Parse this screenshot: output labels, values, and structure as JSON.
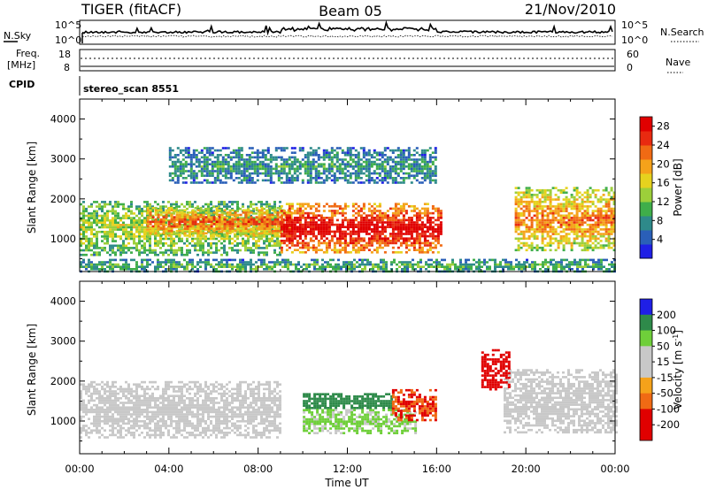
{
  "header": {
    "radar": "TIGER (fitACF)",
    "beam": "Beam 05",
    "date": "21/Nov/2010"
  },
  "noise_panel": {
    "left_label": "N.Sky",
    "right_label": "N.Search",
    "left_ticks": [
      "10^5",
      "10^0"
    ],
    "right_ticks": [
      "10^5",
      "10^0"
    ]
  },
  "freq_panel": {
    "left_label_line1": "Freq.",
    "left_label_line2": "[MHz]",
    "right_label": "Nave",
    "left_ticks": [
      "18",
      "8"
    ],
    "right_ticks": [
      "60",
      "0"
    ]
  },
  "cpid": {
    "label": "CPID",
    "program": "stereo_scan 8551"
  },
  "x_axis": {
    "label": "Time UT",
    "tick_labels": [
      "00:00",
      "04:00",
      "08:00",
      "12:00",
      "16:00",
      "20:00",
      "00:00"
    ]
  },
  "chart_data": [
    {
      "type": "heatmap",
      "name": "power",
      "ylabel": "Slant Range [km]",
      "y_ticks": [
        "1000",
        "2000",
        "3000",
        "4000"
      ],
      "ylim": [
        180,
        4500
      ],
      "xlim_hours": [
        0,
        24
      ],
      "colorbar": {
        "label": "Power [dB]",
        "tick_labels": [
          "4",
          "8",
          "12",
          "16",
          "20",
          "24",
          "28"
        ],
        "range": [
          0,
          30
        ],
        "colors": [
          "#1f1fe6",
          "#2a5fb8",
          "#2e8a8a",
          "#3fae4a",
          "#9ccf3a",
          "#e6d21e",
          "#f5a21a",
          "#f06a14",
          "#e82a10",
          "#e00000"
        ]
      },
      "echo_regions": [
        {
          "t_start": 0,
          "t_end": 9,
          "r_low": 600,
          "r_high": 1950,
          "power": 14
        },
        {
          "t_start": 3,
          "t_end": 9.5,
          "r_low": 1100,
          "r_high": 1800,
          "power": 22
        },
        {
          "t_start": 9,
          "t_end": 16.2,
          "r_low": 650,
          "r_high": 1900,
          "power": 28
        },
        {
          "t_start": 19.5,
          "t_end": 24,
          "r_low": 700,
          "r_high": 2300,
          "power": 20
        },
        {
          "t_start": 4,
          "t_end": 16,
          "r_low": 2400,
          "r_high": 3300,
          "power": 8
        },
        {
          "t_start": 0,
          "t_end": 24,
          "r_low": 200,
          "r_high": 500,
          "power": 10
        }
      ]
    },
    {
      "type": "heatmap",
      "name": "velocity",
      "ylabel": "Slant Range [km]",
      "y_ticks": [
        "1000",
        "2000",
        "3000",
        "4000"
      ],
      "ylim": [
        180,
        4500
      ],
      "xlim_hours": [
        0,
        24
      ],
      "colorbar": {
        "label": "Velocity [m s^-1]",
        "tick_labels": [
          "200",
          "100",
          "50",
          "15",
          "-15",
          "-50",
          "-100",
          "-200"
        ],
        "range": [
          -250,
          250
        ],
        "colors": [
          "#e00000",
          "#f06a14",
          "#f5a21a",
          "#c8c8c8",
          "#c8c8c8",
          "#6fcf3a",
          "#2e8a4a",
          "#1f1fe6"
        ]
      },
      "echo_regions": [
        {
          "t_start": 0,
          "t_end": 9,
          "r_low": 600,
          "r_high": 2000,
          "velocity": 0
        },
        {
          "t_start": 10,
          "t_end": 14,
          "r_low": 1300,
          "r_high": 1700,
          "velocity": 120
        },
        {
          "t_start": 10,
          "t_end": 15,
          "r_low": 700,
          "r_high": 1300,
          "velocity": 40
        },
        {
          "t_start": 14,
          "t_end": 16,
          "r_low": 1000,
          "r_high": 1800,
          "velocity": -150
        },
        {
          "t_start": 19,
          "t_end": 24,
          "r_low": 700,
          "r_high": 2300,
          "velocity": 0
        },
        {
          "t_start": 18,
          "t_end": 19.3,
          "r_low": 1800,
          "r_high": 2800,
          "velocity": -200
        }
      ]
    }
  ]
}
